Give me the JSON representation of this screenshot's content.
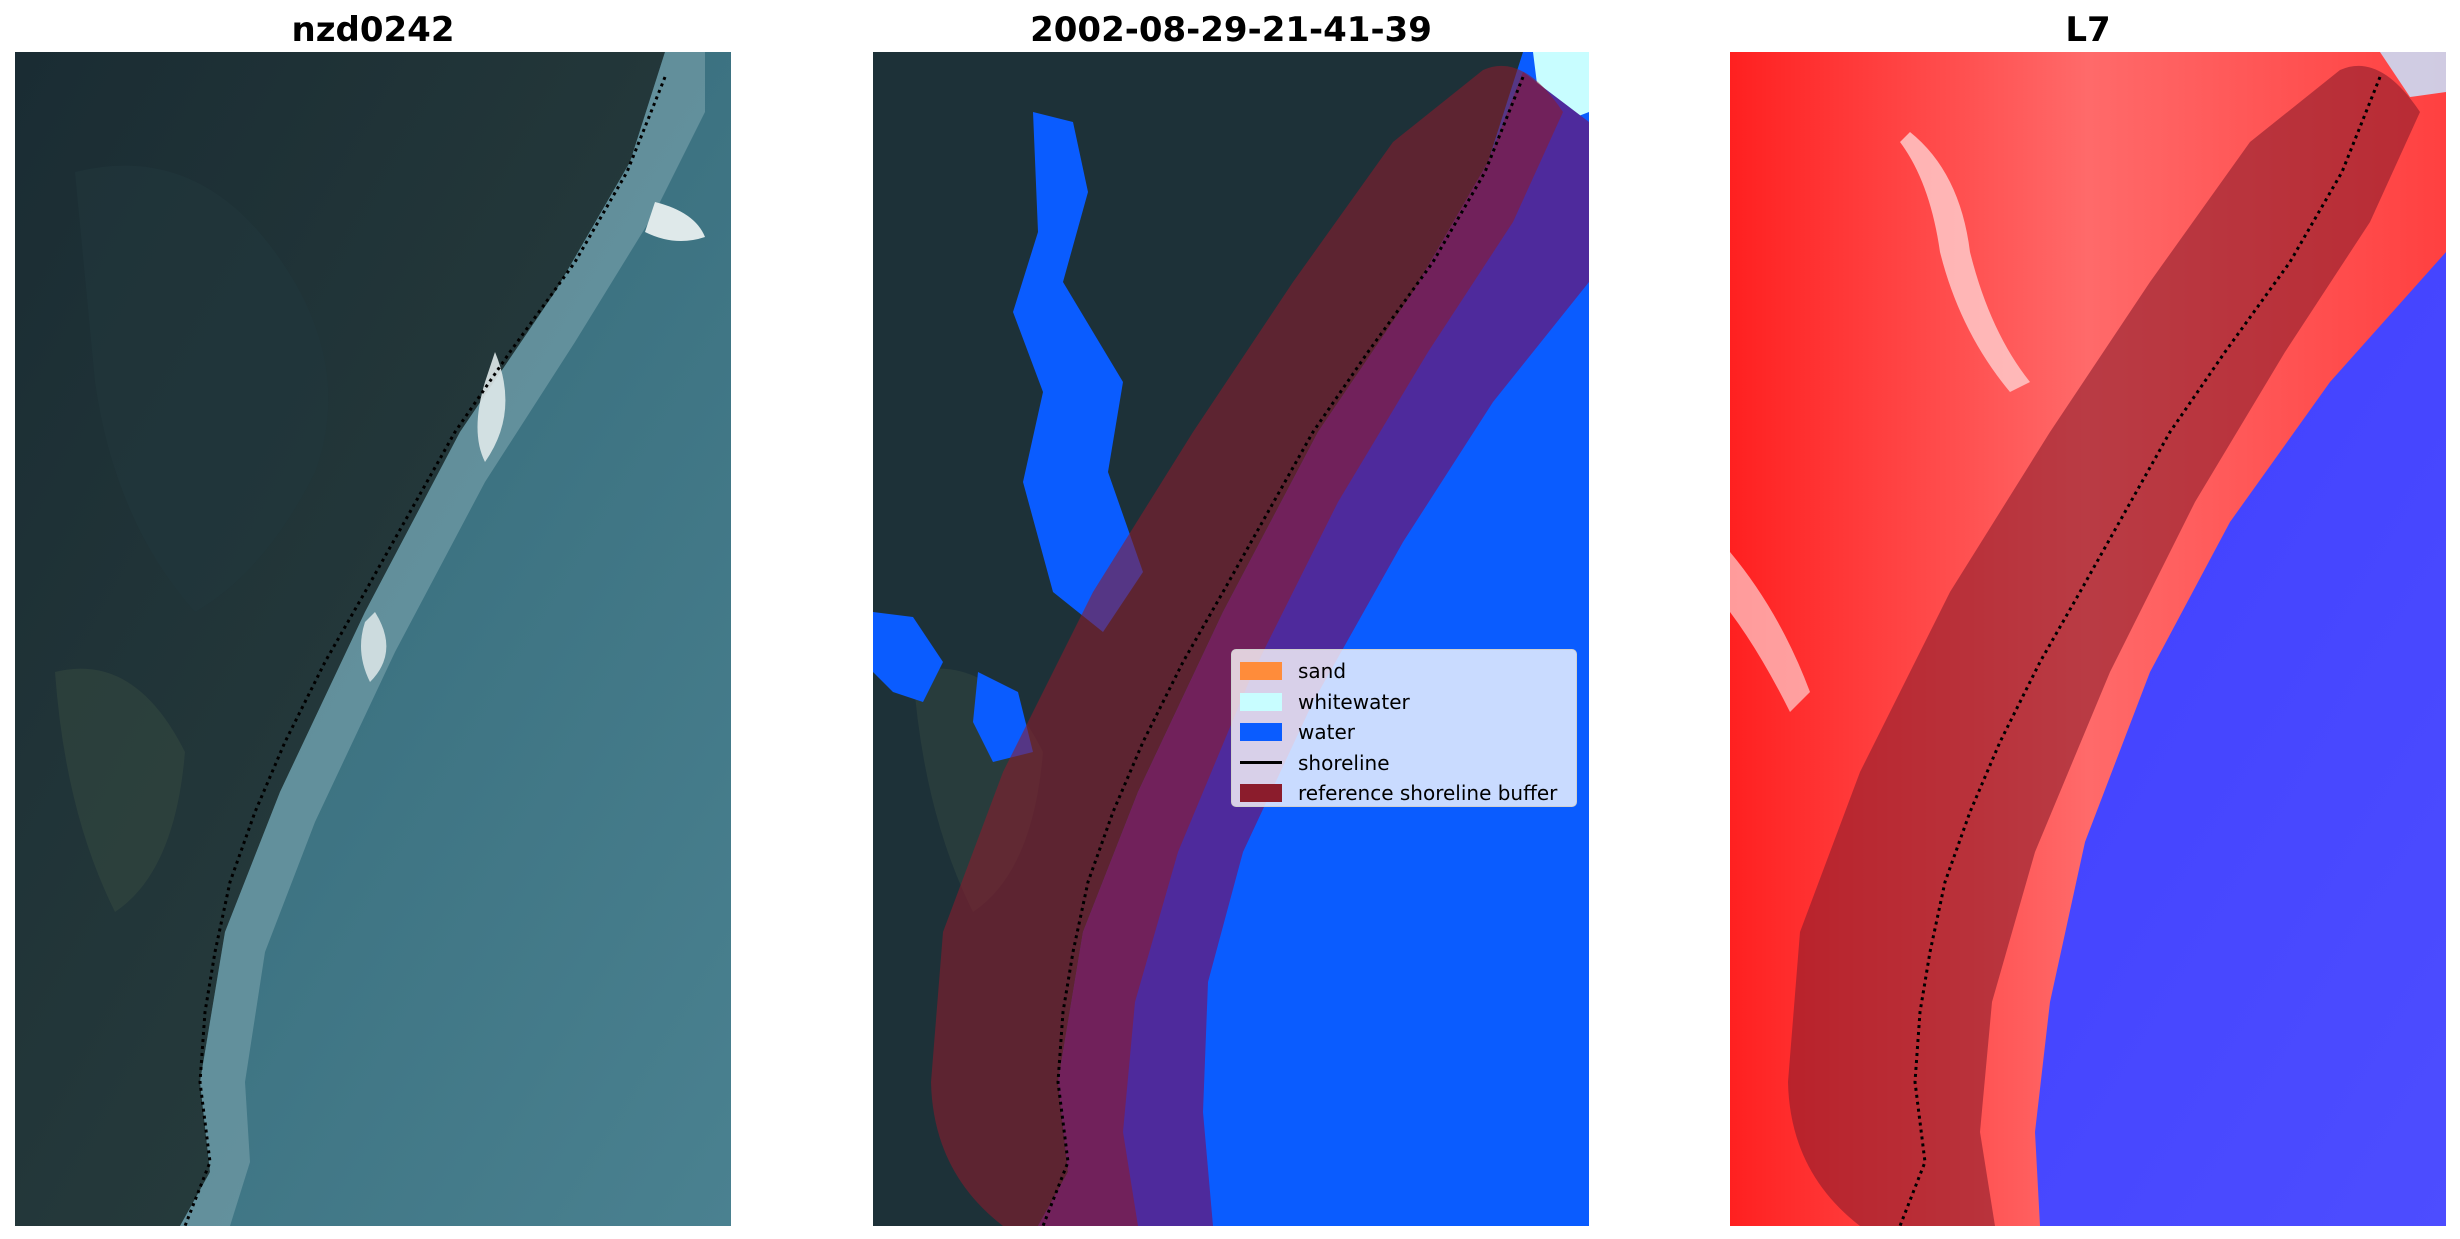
{
  "panels": [
    {
      "title": "nzd0242"
    },
    {
      "title": "2002-08-29-21-41-39"
    },
    {
      "title": "L7"
    }
  ],
  "legend": {
    "items": [
      {
        "label": "sand",
        "color": "#ff8c3a",
        "kind": "patch"
      },
      {
        "label": "whitewater",
        "color": "#c8fdff",
        "kind": "patch"
      },
      {
        "label": "water",
        "color": "#0a5cff",
        "kind": "patch"
      },
      {
        "label": "shoreline",
        "color": "#000000",
        "kind": "line"
      },
      {
        "label": "reference shoreline buffer",
        "color": "#8b1c2c",
        "kind": "patch"
      }
    ]
  },
  "colors": {
    "land_dark": "#1d3138",
    "ocean_rgb": "#3a6f80",
    "water_class": "#0a5cff",
    "whitewater_class": "#c8fdff",
    "sand_class": "#ff8c3a",
    "buffer": "#8b1c2c",
    "land_index": "#ff2a2a",
    "water_index": "#2a2aff"
  }
}
